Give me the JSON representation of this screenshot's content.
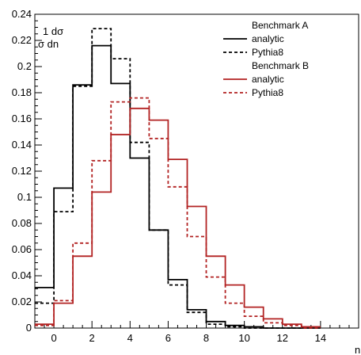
{
  "chart_data": {
    "type": "step",
    "ylabel_parts": {
      "top": "1 dσ",
      "bottom": "σ dn"
    },
    "xlabel": "n",
    "xlim": [
      -1,
      16
    ],
    "ylim": [
      0,
      0.24
    ],
    "grid": false,
    "legend_position": "top-right",
    "x_ticks": [
      0,
      2,
      4,
      6,
      8,
      10,
      12,
      14
    ],
    "y_ticks": [
      0,
      0.02,
      0.04,
      0.06,
      0.08,
      0.1,
      0.12,
      0.14,
      0.16,
      0.18,
      0.2,
      0.22,
      0.24
    ],
    "bin_edges": [
      -1,
      0,
      1,
      2,
      3,
      4,
      5,
      6,
      7,
      8,
      9,
      10,
      11,
      12,
      13,
      14
    ],
    "groups": [
      {
        "label": "Benchmark A",
        "color": "#000000"
      },
      {
        "label": "Benchmark B",
        "color": "#b22222"
      }
    ],
    "series": [
      {
        "group": 0,
        "name": "analytic",
        "dash": "solid",
        "color": "#000000",
        "values": [
          0.031,
          0.107,
          0.186,
          0.216,
          0.187,
          0.13,
          0.075,
          0.037,
          0.014,
          0.005,
          0.002,
          0.001,
          0.0,
          0.0,
          0.0
        ]
      },
      {
        "group": 0,
        "name": "Pythia8",
        "dash": "dashed",
        "color": "#000000",
        "values": [
          0.019,
          0.089,
          0.185,
          0.229,
          0.206,
          0.142,
          0.075,
          0.033,
          0.012,
          0.003,
          0.001,
          0.0,
          0.0,
          0.0,
          0.0
        ]
      },
      {
        "group": 1,
        "name": "analytic",
        "dash": "solid",
        "color": "#b22222",
        "values": [
          0.003,
          0.019,
          0.055,
          0.104,
          0.148,
          0.168,
          0.159,
          0.129,
          0.093,
          0.055,
          0.033,
          0.016,
          0.007,
          0.003,
          0.001
        ]
      },
      {
        "group": 1,
        "name": "Pythia8",
        "dash": "dashed",
        "color": "#b22222",
        "values": [
          0.002,
          0.021,
          0.065,
          0.128,
          0.173,
          0.176,
          0.145,
          0.108,
          0.07,
          0.039,
          0.019,
          0.009,
          0.004,
          0.002,
          0.0
        ]
      }
    ]
  }
}
